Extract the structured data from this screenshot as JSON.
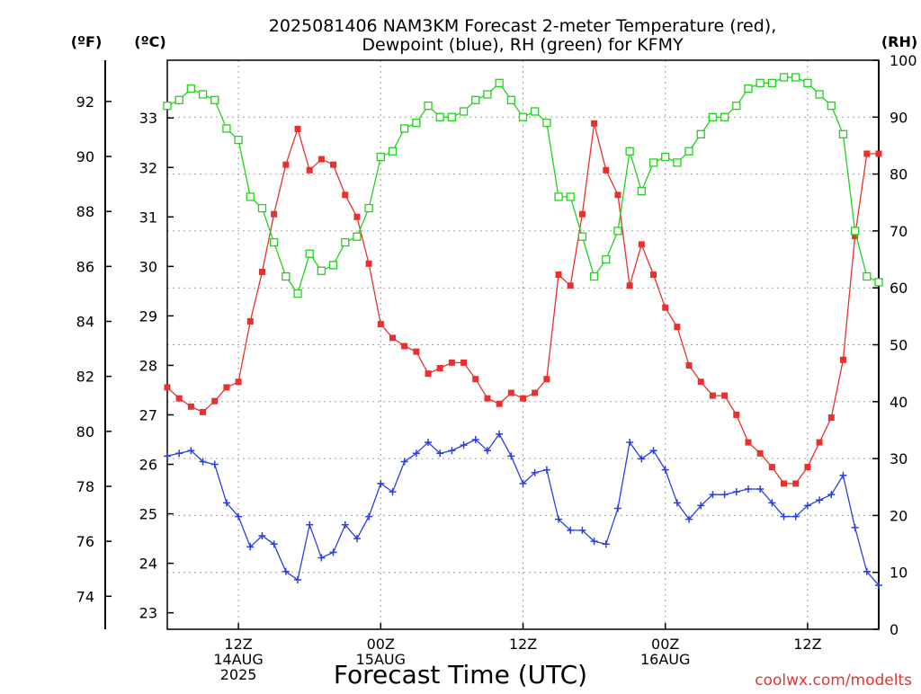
{
  "title_line1": "2025081406 NAM3KM Forecast 2-meter Temperature (red),",
  "title_line2": "Dewpoint (blue), RH (green) for KFMY",
  "xlabel": "Forecast Time (UTC)",
  "watermark": "coolwx.com/modelts",
  "axis_units": {
    "left_f": "(ºF)",
    "left_c": "(ºC)",
    "right_rh": "(RH)"
  },
  "x_ticks": [
    {
      "hour": 6,
      "lines": [
        "12Z",
        "14AUG",
        "2025"
      ]
    },
    {
      "hour": 18,
      "lines": [
        "00Z",
        "15AUG"
      ]
    },
    {
      "hour": 30,
      "lines": [
        "12Z"
      ]
    },
    {
      "hour": 42,
      "lines": [
        "00Z",
        "16AUG"
      ]
    },
    {
      "hour": 54,
      "lines": [
        "12Z"
      ]
    }
  ],
  "colors": {
    "temperature": "#e8312e",
    "dewpoint": "#2a3ee8",
    "rh": "#22d11c",
    "axes": "#000000",
    "grid": "#a0a0a0",
    "watermark": "#e8312e"
  },
  "chart_data": {
    "type": "line",
    "x": [
      0,
      1,
      2,
      3,
      4,
      5,
      6,
      7,
      8,
      9,
      10,
      11,
      12,
      13,
      14,
      15,
      16,
      17,
      18,
      19,
      20,
      21,
      22,
      23,
      24,
      25,
      26,
      27,
      28,
      29,
      30,
      31,
      32,
      33,
      34,
      35,
      36,
      37,
      38,
      39,
      40,
      41,
      42,
      43,
      44,
      45,
      46,
      47,
      48,
      49,
      50,
      51,
      52,
      53,
      54,
      55,
      56,
      57,
      58,
      59,
      60
    ],
    "x_units": "forecast hours from 2025-08-14 06Z",
    "series": [
      {
        "name": "Temperature",
        "units": "°F",
        "axis": "left",
        "marker": "filled-square",
        "values": [
          81.6,
          81.2,
          80.9,
          80.7,
          81.1,
          81.6,
          81.8,
          84.0,
          85.8,
          87.9,
          89.7,
          91.0,
          89.5,
          89.9,
          89.7,
          88.6,
          87.8,
          86.1,
          83.9,
          83.4,
          83.1,
          82.9,
          82.1,
          82.3,
          82.5,
          82.5,
          81.9,
          81.2,
          81.0,
          81.4,
          81.2,
          81.4,
          81.9,
          85.7,
          85.3,
          87.9,
          91.2,
          89.5,
          88.6,
          85.3,
          86.8,
          85.7,
          84.5,
          83.8,
          82.4,
          81.8,
          81.3,
          81.3,
          80.6,
          79.6,
          79.2,
          78.7,
          78.1,
          78.1,
          78.7,
          79.6,
          80.5,
          82.6,
          87.1,
          90.1,
          90.1
        ]
      },
      {
        "name": "Dewpoint",
        "units": "°F",
        "axis": "left",
        "marker": "plus",
        "values": [
          79.1,
          79.2,
          79.3,
          78.9,
          78.8,
          77.4,
          76.9,
          75.8,
          76.2,
          75.9,
          74.9,
          74.6,
          76.6,
          75.4,
          75.6,
          76.6,
          76.1,
          76.9,
          78.1,
          77.8,
          78.9,
          79.2,
          79.6,
          79.2,
          79.3,
          79.5,
          79.7,
          79.3,
          79.9,
          79.1,
          78.1,
          78.5,
          78.6,
          76.8,
          76.4,
          76.4,
          76.0,
          75.9,
          77.2,
          79.6,
          79.0,
          79.3,
          78.6,
          77.4,
          76.8,
          77.3,
          77.7,
          77.7,
          77.8,
          77.9,
          77.9,
          77.4,
          76.9,
          76.9,
          77.3,
          77.5,
          77.7,
          78.4,
          76.5,
          74.9,
          74.4
        ]
      },
      {
        "name": "RH",
        "units": "%",
        "axis": "right",
        "marker": "open-square",
        "values": [
          92,
          93,
          95,
          94,
          93,
          88,
          86,
          76,
          74,
          68,
          62,
          59,
          66,
          63,
          64,
          68,
          69,
          74,
          83,
          84,
          88,
          89,
          92,
          90,
          90,
          91,
          93,
          94,
          96,
          93,
          90,
          91,
          89,
          76,
          76,
          69,
          62,
          65,
          70,
          84,
          77,
          82,
          83,
          82,
          84,
          87,
          90,
          90,
          92,
          95,
          96,
          96,
          97,
          97,
          96,
          94,
          92,
          87,
          70,
          62,
          61
        ]
      }
    ],
    "axes": {
      "left_f": {
        "ylim": [
          72.8,
          93.5
        ],
        "ticks": [
          74,
          76,
          78,
          80,
          82,
          84,
          86,
          88,
          90,
          92
        ],
        "label": "(ºF)"
      },
      "left_c": {
        "ticks": [
          23,
          24,
          25,
          26,
          27,
          28,
          29,
          30,
          31,
          32,
          33
        ],
        "label": "(ºC)"
      },
      "right_rh": {
        "ylim": [
          0,
          100
        ],
        "ticks": [
          0,
          10,
          20,
          30,
          40,
          50,
          60,
          70,
          80,
          90,
          100
        ],
        "label": "(RH)"
      }
    },
    "grid": true
  }
}
